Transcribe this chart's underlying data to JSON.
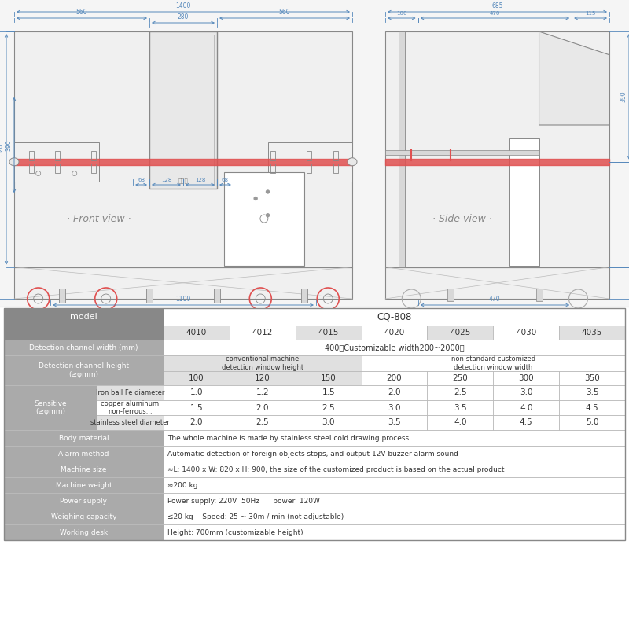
{
  "bg_color": "#ffffff",
  "drawing_bg": "#f8f8f8",
  "gray": "#888888",
  "lgray": "#cccccc",
  "blue": "#7ab0d4",
  "red_belt": "#e05050",
  "model_header": "CQ-808",
  "model_variants": [
    "4010",
    "4012",
    "4015",
    "4020",
    "4025",
    "4030",
    "4035"
  ],
  "channel_heights": [
    "100",
    "120",
    "150",
    "200",
    "250",
    "300",
    "350"
  ],
  "sensitive_sub_labels": [
    "Iron ball Fe diameter",
    "copper aluminum\nnon-ferrous...",
    "stainless steel diameter"
  ],
  "sensitive_values": [
    [
      "1.0",
      "1.2",
      "1.5",
      "2.0",
      "2.5",
      "3.0",
      "3.5"
    ],
    [
      "1.5",
      "2.0",
      "2.5",
      "3.0",
      "3.5",
      "4.0",
      "4.5"
    ],
    [
      "2.0",
      "2.5",
      "3.0",
      "3.5",
      "4.0",
      "4.5",
      "5.0"
    ]
  ],
  "full_rows": [
    [
      "Body material",
      "The whole machine is made by stainless steel cold drawing process"
    ],
    [
      "Alarm method",
      "Automatic detection of foreign objects stops, and output 12V buzzer alarm sound"
    ],
    [
      "Machine size",
      "≈L: 1400 x W: 820 x H: 900, the size of the customized product is based on the actual product"
    ],
    [
      "Machine weight",
      "≈200 kg"
    ],
    [
      "Power supply",
      "Power supply: 220V  50Hz      power: 120W"
    ],
    [
      "Weighing capacity",
      "≤20 kg    Speed: 25 ~ 30m / min (not adjustable)"
    ],
    [
      "Working desk",
      "Height: 700mm (customizable height)"
    ]
  ],
  "hdr_bg": "#888888",
  "sub_bg": "#aaaaaa",
  "alt_bg": "#e0e0e0",
  "white": "#ffffff",
  "dark_txt": "#333333",
  "white_txt": "#ffffff"
}
